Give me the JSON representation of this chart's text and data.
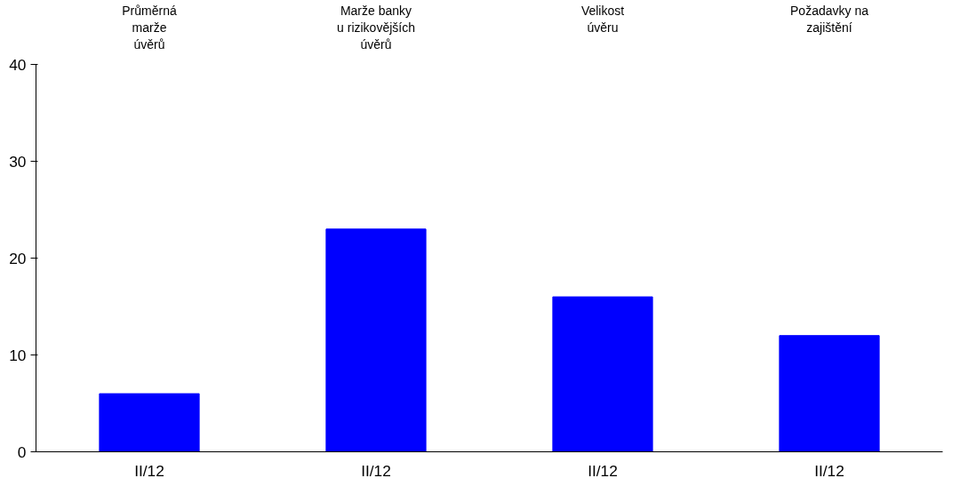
{
  "chart_data": {
    "type": "bar",
    "categories": [
      "II/12",
      "II/12",
      "II/12",
      "II/12"
    ],
    "values": [
      6,
      23,
      16,
      12
    ],
    "color": "#0000ff",
    "ylim": [
      0,
      40
    ],
    "yticks": [
      0,
      10,
      20,
      30,
      40
    ],
    "grid": false,
    "annotations": [
      "Průměrná\nmarže\núvěrů",
      "Marže banky\nu rizikovějších\núvěrů",
      "Velikost\núvěru",
      "Požadavky na\nzajištění"
    ]
  }
}
